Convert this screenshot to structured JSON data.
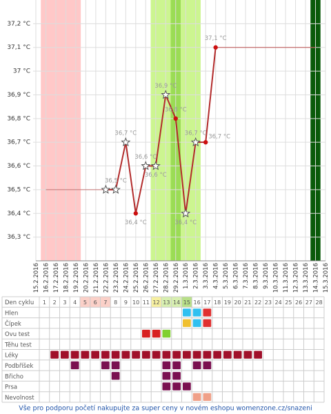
{
  "chart_data": {
    "type": "line",
    "categories": [
      "15.2.2016",
      "16.2.2016",
      "17.2.2016",
      "18.2.2016",
      "19.2.2016",
      "20.2.2016",
      "21.2.2016",
      "22.2.2016",
      "23.2.2016",
      "24.2.2016",
      "25.2.2016",
      "26.2.2016",
      "27.2.2016",
      "28.2.2016",
      "29.2.2016",
      "1.3.2016",
      "2.3.2016",
      "3.3.2016",
      "4.3.2016",
      "5.3.2016",
      "6.3.2016",
      "7.3.2016",
      "8.3.2016",
      "9.3.2016",
      "10.3.2016",
      "11.3.2016",
      "12.3.2016",
      "13.3.2016",
      "14.3.2016",
      "15.3.2016"
    ],
    "series": [
      {
        "color": "#b22a2a",
        "values": [
          null,
          null,
          null,
          null,
          null,
          null,
          null,
          36.5,
          36.5,
          36.7,
          36.4,
          36.6,
          36.6,
          36.9,
          36.8,
          36.4,
          36.7,
          36.7,
          37.1,
          null,
          null,
          null,
          null,
          null,
          null,
          null,
          null,
          null,
          null,
          null
        ],
        "value_labels": [
          null,
          null,
          null,
          null,
          null,
          null,
          null,
          null,
          "36,5 °C",
          "36,7 °C",
          "36,4 °C",
          "36,6 °C",
          "36,6 °C",
          "36,9 °C",
          "36,8 °C",
          "36,4 °C",
          "36,7 °C",
          "36,7 °C",
          "37,1 °C",
          null,
          null,
          null,
          null,
          null,
          null,
          null,
          null,
          null,
          null,
          null
        ],
        "markers": [
          null,
          null,
          null,
          null,
          null,
          null,
          null,
          "star",
          "star",
          "star",
          "dot",
          "star",
          "star",
          "star",
          "dot",
          "star",
          "star",
          "dot",
          "dot",
          null,
          null,
          null,
          null,
          null,
          null,
          null,
          null,
          null,
          null,
          null
        ]
      }
    ],
    "ylim": [
      36.2,
      37.3
    ],
    "yticks": [
      {
        "value": 36.3,
        "label": "36,3 °C"
      },
      {
        "value": 36.4,
        "label": "36,4 °C"
      },
      {
        "value": 36.5,
        "label": "36,5 °C"
      },
      {
        "value": 36.6,
        "label": "36,6 °C"
      },
      {
        "value": 36.7,
        "label": "36,7 °C"
      },
      {
        "value": 36.8,
        "label": "36,8 °C"
      },
      {
        "value": 36.9,
        "label": "36,9 °C"
      },
      {
        "value": 37.0,
        "label": "37 °C"
      },
      {
        "value": 37.1,
        "label": "37,1 °C"
      },
      {
        "value": 37.2,
        "label": "37,2 °C"
      }
    ],
    "grid": true,
    "bands": [
      {
        "from": "16.2.2016",
        "to": "19.2.2016",
        "color": "#ffc8c8"
      },
      {
        "from": "27.2.2016",
        "to": "2.3.2016",
        "color": "#ccf590"
      },
      {
        "from": "29.2.2016",
        "to": "29.2.2016",
        "color": "#9bdc55"
      },
      {
        "from": "14.3.2016",
        "to": "14.3.2016",
        "color": "#0a5a0a"
      }
    ]
  },
  "cycle_table": {
    "header": "Den cyklu",
    "days": [
      1,
      2,
      3,
      4,
      5,
      6,
      7,
      8,
      9,
      10,
      11,
      12,
      13,
      14,
      15,
      16,
      17,
      18,
      19,
      20,
      21,
      22,
      23,
      24,
      25,
      26,
      27,
      28
    ],
    "day_colors": [
      null,
      null,
      null,
      null,
      "#fbd0c8",
      "#fbd0c8",
      "#fbd0c8",
      null,
      null,
      null,
      null,
      "#f7f0a0",
      "#d8f0b0",
      "#d8f0b0",
      "#b8e088",
      null,
      null,
      null,
      null,
      null,
      null,
      null,
      null,
      null,
      null,
      null,
      null,
      null
    ],
    "rows": [
      {
        "label": "Hlen",
        "days": [
          15,
          16,
          17
        ],
        "colors": [
          "#30c0f0",
          "#30c0f0",
          "#e03030"
        ]
      },
      {
        "label": "Čípek",
        "days": [
          15,
          16,
          17
        ],
        "colors": [
          "#f0c030",
          "#30c0f0",
          "#e03030"
        ]
      },
      {
        "label": "Ovu test",
        "days": [
          11,
          12,
          13
        ],
        "colors": [
          "#d82020",
          "#d82020",
          "#80d030"
        ]
      },
      {
        "label": "Těhu test",
        "days": [],
        "colors": []
      },
      {
        "label": "Léky",
        "days": [
          2,
          3,
          4,
          5,
          6,
          7,
          8,
          9,
          10,
          11,
          12,
          13,
          14,
          15,
          16,
          17,
          18,
          19,
          20,
          21,
          22
        ],
        "colors": [
          "#a0102a",
          "#a0102a",
          "#a0102a",
          "#a0102a",
          "#a0102a",
          "#a0102a",
          "#a0102a",
          "#a0102a",
          "#a0102a",
          "#a0102a",
          "#a0102a",
          "#a0102a",
          "#a0102a",
          "#a0102a",
          "#a0102a",
          "#a0102a",
          "#a0102a",
          "#a0102a",
          "#a0102a",
          "#a0102a",
          "#a0102a"
        ]
      },
      {
        "label": "Podbříšek",
        "days": [
          4,
          7,
          8,
          13,
          14,
          16,
          17
        ],
        "colors": [
          "#7a1050",
          "#7a1050",
          "#7a1050",
          "#7a1050",
          "#7a1050",
          "#7a1050",
          "#7a1050"
        ]
      },
      {
        "label": "Břicho",
        "days": [
          8,
          13,
          14
        ],
        "colors": [
          "#7a1050",
          "#7a1050",
          "#7a1050"
        ]
      },
      {
        "label": "Prsa",
        "days": [
          13,
          14,
          15
        ],
        "colors": [
          "#7a1050",
          "#7a1050",
          "#7a1050"
        ]
      },
      {
        "label": "Nevolnost",
        "days": [
          16,
          17
        ],
        "colors": [
          "#f0a088",
          "#f0a088"
        ]
      }
    ]
  },
  "footer": "Vše pro podporu početí nakupujte za super ceny v novém eshopu womenzone.cz/snazeni"
}
